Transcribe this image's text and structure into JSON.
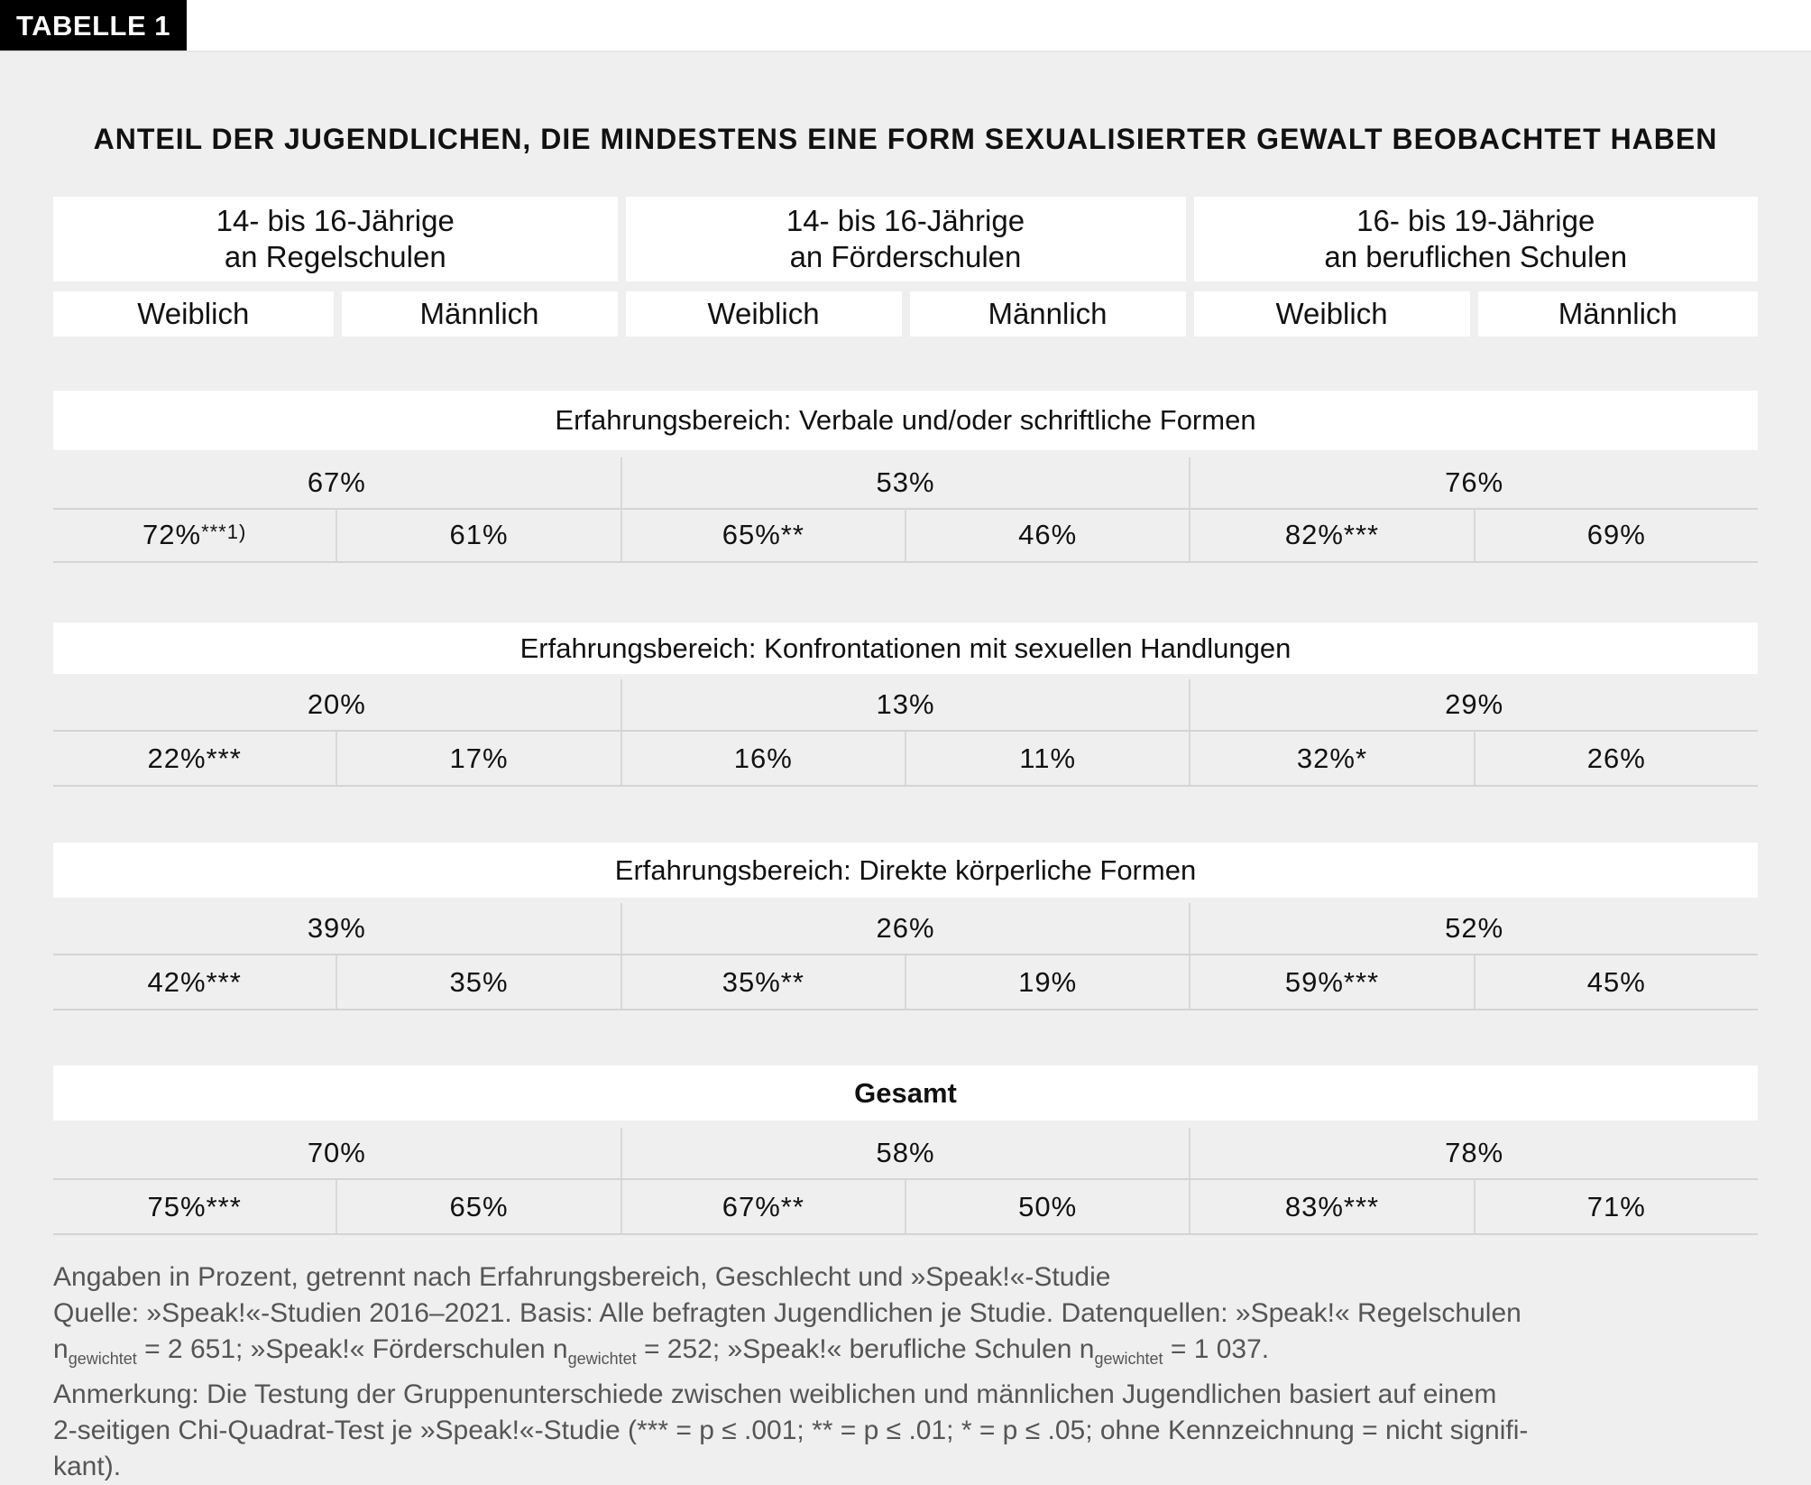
{
  "tab_label": "TABELLE 1",
  "title": "ANTEIL DER JUGENDLICHEN, DIE MINDESTENS EINE FORM SEXUALISIERTER GEWALT BEOBACHTET HABEN",
  "groups": [
    {
      "line1": "14- bis 16-Jährige",
      "line2": "an Regelschulen",
      "female": "Weiblich",
      "male": "Männlich"
    },
    {
      "line1": "14- bis 16-Jährige",
      "line2": "an Förderschulen",
      "female": "Weiblich",
      "male": "Männlich"
    },
    {
      "line1": "16- bis 19-Jährige",
      "line2": "an beruflichen Schulen",
      "female": "Weiblich",
      "male": "Männlich"
    }
  ],
  "sections": [
    {
      "label": "Erfahrungsbereich: Verbale und/oder schriftliche Formen",
      "totals": [
        "67%",
        "53%",
        "76%"
      ],
      "split": [
        {
          "v": "72%",
          "sig": "***1)"
        },
        {
          "v": "61%",
          "sig": ""
        },
        {
          "v": "65%",
          "sig": "**"
        },
        {
          "v": "46%",
          "sig": ""
        },
        {
          "v": "82%",
          "sig": "***"
        },
        {
          "v": "69%",
          "sig": ""
        }
      ]
    },
    {
      "label": "Erfahrungsbereich: Konfrontationen mit sexuellen Handlungen",
      "totals": [
        "20%",
        "13%",
        "29%"
      ],
      "split": [
        {
          "v": "22%",
          "sig": "***"
        },
        {
          "v": "17%",
          "sig": ""
        },
        {
          "v": "16%",
          "sig": ""
        },
        {
          "v": "11%",
          "sig": ""
        },
        {
          "v": "32%",
          "sig": "*"
        },
        {
          "v": "26%",
          "sig": ""
        }
      ]
    },
    {
      "label": "Erfahrungsbereich: Direkte körperliche Formen",
      "totals": [
        "39%",
        "26%",
        "52%"
      ],
      "split": [
        {
          "v": "42%",
          "sig": "***"
        },
        {
          "v": "35%",
          "sig": ""
        },
        {
          "v": "35%",
          "sig": "**"
        },
        {
          "v": "19%",
          "sig": ""
        },
        {
          "v": "59%",
          "sig": "***"
        },
        {
          "v": "45%",
          "sig": ""
        }
      ]
    },
    {
      "label": "Gesamt",
      "bold": true,
      "totals": [
        "70%",
        "58%",
        "78%"
      ],
      "split": [
        {
          "v": "75%",
          "sig": "***"
        },
        {
          "v": "65%",
          "sig": ""
        },
        {
          "v": "67%",
          "sig": "**"
        },
        {
          "v": "50%",
          "sig": ""
        },
        {
          "v": "83%",
          "sig": "***"
        },
        {
          "v": "71%",
          "sig": ""
        }
      ]
    }
  ],
  "notes": {
    "line1": "Angaben in Prozent, getrennt nach Erfahrungsbereich, Geschlecht und »Speak!«-Studie",
    "line2": "Quelle: »Speak!«-Studien 2016–2021. Basis: Alle befragten Jugendlichen je Studie. Datenquellen: »Speak!« Regelschulen",
    "n_symbol": "n",
    "n_sub": "gewichtet",
    "n1": " = 2 651; »Speak!« Förderschulen ",
    "n2": " = 252; »Speak!« berufliche Schulen ",
    "n3": " = 1 037.",
    "line4": "Anmerkung: Die Testung der Gruppenunterschiede zwischen weiblichen und männlichen Jugendlichen basiert auf einem",
    "line5": "2-seitigen Chi-Quadrat-Test je »Speak!«-Studie (*** = p ≤ .001; ** = p ≤ .01; * = p ≤ .05; ohne Kennzeichnung = nicht signifi-",
    "line6": "kant)."
  }
}
